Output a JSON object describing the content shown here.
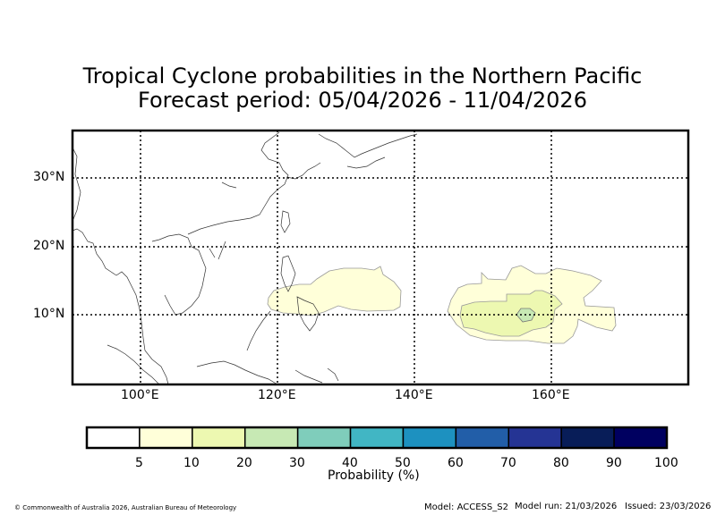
{
  "title": {
    "line1": "Tropical Cyclone probabilities in the Northern Pacific",
    "line2": "Forecast period: 05/04/2026 - 11/04/2026"
  },
  "map": {
    "lon_labels": [
      "100°E",
      "120°E",
      "140°E",
      "160°E"
    ],
    "lat_labels": [
      "30°N",
      "20°N",
      "10°N"
    ],
    "grid_style": "dotted"
  },
  "colorbar": {
    "ticks": [
      "5",
      "10",
      "20",
      "30",
      "40",
      "50",
      "60",
      "70",
      "80",
      "90",
      "100"
    ],
    "colors": [
      "#ffffff",
      "#ffffd9",
      "#edf8b1",
      "#c7e9b4",
      "#7fcdbb",
      "#41b6c4",
      "#1d91c0",
      "#225ea8",
      "#253494",
      "#081d58",
      "#000060"
    ],
    "label": "Probability (%)"
  },
  "footer": {
    "copyright": "© Commonwealth of Australia 2026, Australian Bureau of Meteorology",
    "model": "Model: ACCESS_S2",
    "model_run": "Model run: 21/03/2026",
    "issued": "Issued: 23/03/2026"
  }
}
